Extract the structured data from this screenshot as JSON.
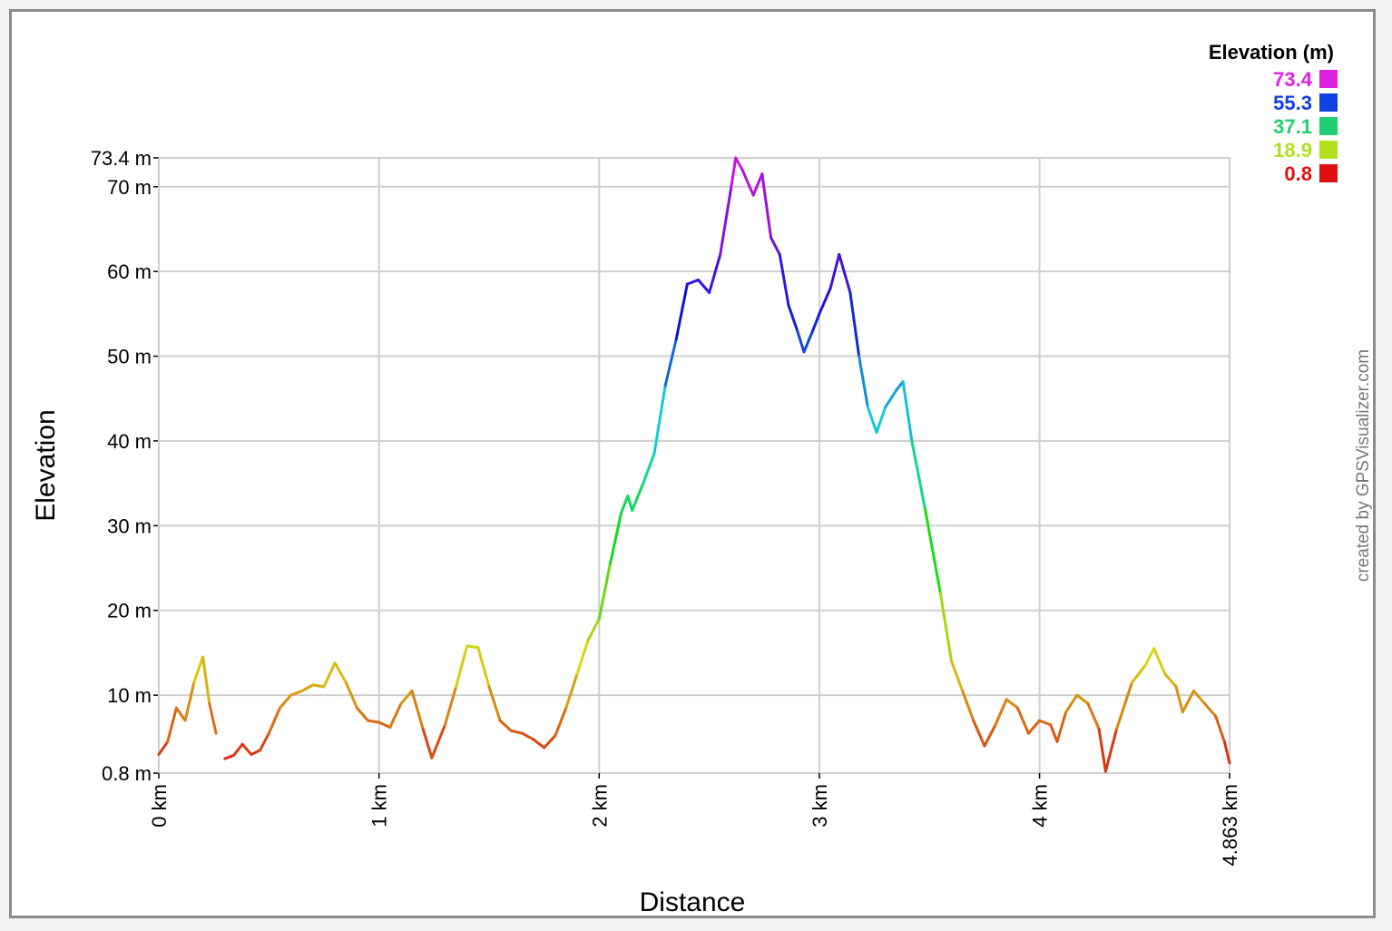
{
  "chart_data": {
    "type": "line",
    "xlabel": "Distance",
    "ylabel": "Elevation",
    "credit": "created by GPSVisualizer.com",
    "xlim": [
      0,
      4.863
    ],
    "ylim": [
      0.8,
      73.4
    ],
    "x_ticks": [
      {
        "value": 0,
        "label": "0 km"
      },
      {
        "value": 1,
        "label": "1 km"
      },
      {
        "value": 2,
        "label": "2 km"
      },
      {
        "value": 3,
        "label": "3 km"
      },
      {
        "value": 4,
        "label": "4 km"
      },
      {
        "value": 4.863,
        "label": "4.863 km"
      }
    ],
    "y_ticks": [
      {
        "value": 0.8,
        "label": "0.8 m"
      },
      {
        "value": 10,
        "label": "10 m"
      },
      {
        "value": 20,
        "label": "20 m"
      },
      {
        "value": 30,
        "label": "30 m"
      },
      {
        "value": 40,
        "label": "40 m"
      },
      {
        "value": 50,
        "label": "50 m"
      },
      {
        "value": 60,
        "label": "60 m"
      },
      {
        "value": 70,
        "label": "70 m"
      },
      {
        "value": 73.4,
        "label": "73.4 m"
      }
    ],
    "grid": true,
    "legend": {
      "title": "Elevation (m)",
      "position": "top-right",
      "entries": [
        {
          "label": "73.4",
          "color": "#e020e0"
        },
        {
          "label": "55.3",
          "color": "#1040e0"
        },
        {
          "label": "37.1",
          "color": "#20d070"
        },
        {
          "label": "18.9",
          "color": "#b0e020"
        },
        {
          "label": "0.8",
          "color": "#e01010"
        }
      ]
    },
    "series": [
      {
        "segments": [
          [
            [
              0.0,
              3.0
            ],
            [
              0.04,
              4.5
            ],
            [
              0.08,
              8.5
            ],
            [
              0.12,
              7.0
            ],
            [
              0.16,
              11.5
            ],
            [
              0.2,
              14.5
            ],
            [
              0.23,
              9.0
            ],
            [
              0.26,
              5.5
            ]
          ],
          [
            [
              0.3,
              2.5
            ],
            [
              0.34,
              2.9
            ],
            [
              0.38,
              4.2
            ],
            [
              0.42,
              3.0
            ],
            [
              0.46,
              3.5
            ],
            [
              0.5,
              5.5
            ],
            [
              0.55,
              8.5
            ],
            [
              0.6,
              10.0
            ],
            [
              0.65,
              10.5
            ],
            [
              0.7,
              11.2
            ],
            [
              0.75,
              11.0
            ],
            [
              0.8,
              13.8
            ],
            [
              0.85,
              11.5
            ],
            [
              0.9,
              8.5
            ],
            [
              0.95,
              7.0
            ],
            [
              1.0,
              6.8
            ],
            [
              1.05,
              6.2
            ],
            [
              1.1,
              9.0
            ],
            [
              1.15,
              10.5
            ],
            [
              1.2,
              6.0
            ],
            [
              1.24,
              2.6
            ],
            [
              1.3,
              6.5
            ],
            [
              1.35,
              11.0
            ],
            [
              1.4,
              15.8
            ],
            [
              1.45,
              15.6
            ],
            [
              1.5,
              11.0
            ],
            [
              1.55,
              7.0
            ],
            [
              1.6,
              5.8
            ],
            [
              1.65,
              5.5
            ],
            [
              1.7,
              4.8
            ],
            [
              1.75,
              3.8
            ],
            [
              1.8,
              5.2
            ],
            [
              1.85,
              8.5
            ],
            [
              1.9,
              12.5
            ],
            [
              1.95,
              16.5
            ],
            [
              2.0,
              19.0
            ],
            [
              2.05,
              25.5
            ],
            [
              2.1,
              31.5
            ],
            [
              2.13,
              33.5
            ],
            [
              2.15,
              31.8
            ],
            [
              2.2,
              35.0
            ],
            [
              2.25,
              38.5
            ],
            [
              2.3,
              46.5
            ],
            [
              2.35,
              52.0
            ],
            [
              2.4,
              58.5
            ],
            [
              2.45,
              59.0
            ],
            [
              2.5,
              57.5
            ],
            [
              2.55,
              62.0
            ],
            [
              2.6,
              70.0
            ],
            [
              2.62,
              73.4
            ],
            [
              2.65,
              72.0
            ],
            [
              2.7,
              69.0
            ],
            [
              2.74,
              71.5
            ],
            [
              2.78,
              64.0
            ],
            [
              2.82,
              62.0
            ],
            [
              2.86,
              56.0
            ],
            [
              2.9,
              53.0
            ],
            [
              2.93,
              50.5
            ],
            [
              2.97,
              53.0
            ],
            [
              3.0,
              55.0
            ],
            [
              3.05,
              58.0
            ],
            [
              3.09,
              62.0
            ],
            [
              3.14,
              57.5
            ],
            [
              3.18,
              50.0
            ],
            [
              3.22,
              44.0
            ],
            [
              3.26,
              41.0
            ],
            [
              3.3,
              44.0
            ],
            [
              3.35,
              46.0
            ],
            [
              3.38,
              47.0
            ],
            [
              3.42,
              40.0
            ],
            [
              3.48,
              32.0
            ],
            [
              3.55,
              22.0
            ],
            [
              3.6,
              14.0
            ],
            [
              3.65,
              10.5
            ],
            [
              3.7,
              7.0
            ],
            [
              3.75,
              4.0
            ],
            [
              3.8,
              6.5
            ],
            [
              3.85,
              9.5
            ],
            [
              3.9,
              8.5
            ],
            [
              3.95,
              5.5
            ],
            [
              4.0,
              7.0
            ],
            [
              4.05,
              6.5
            ],
            [
              4.08,
              4.5
            ],
            [
              4.12,
              8.0
            ],
            [
              4.17,
              10.0
            ],
            [
              4.22,
              9.0
            ],
            [
              4.27,
              6.0
            ],
            [
              4.3,
              1.0
            ],
            [
              4.35,
              6.0
            ],
            [
              4.42,
              11.5
            ],
            [
              4.48,
              13.5
            ],
            [
              4.52,
              15.5
            ],
            [
              4.57,
              12.5
            ],
            [
              4.62,
              11.0
            ],
            [
              4.65,
              8.0
            ],
            [
              4.7,
              10.5
            ],
            [
              4.75,
              9.0
            ],
            [
              4.8,
              7.5
            ],
            [
              4.84,
              4.5
            ],
            [
              4.863,
              2.0
            ]
          ]
        ]
      }
    ]
  }
}
